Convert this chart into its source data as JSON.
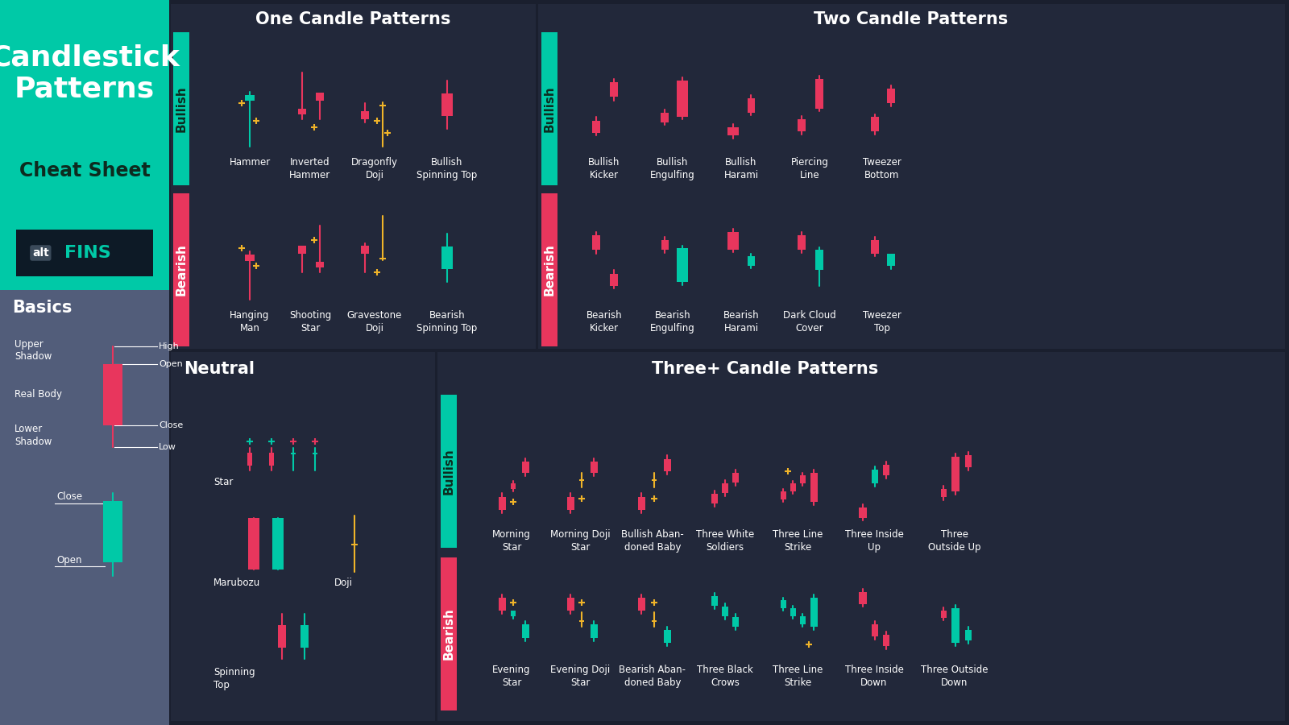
{
  "bg_dark": "#1a1f2e",
  "bg_panel": "#22283a",
  "bg_left_teal": "#00c9a7",
  "bg_left_dark": "#525d7a",
  "bullish_color": "#00c9a7",
  "bearish_color": "#e8365d",
  "doji_color": "#f0b429",
  "text_white": "#ffffff",
  "text_dark": "#0d2b1f",
  "one_candle_title": "One Candle Patterns",
  "two_candle_title": "Two Candle Patterns",
  "neutral_title": "Neutral",
  "three_candle_title": "Three+ Candle Patterns",
  "basics_title": "Basics",
  "one_candle_bullish": [
    "Hammer",
    "Inverted\nHammer",
    "Dragonfly\nDoji",
    "Bullish\nSpinning Top"
  ],
  "one_candle_bearish": [
    "Hanging\nMan",
    "Shooting\nStar",
    "Gravestone\nDoji",
    "Bearish\nSpinning Top"
  ],
  "two_candle_bullish": [
    "Bullish\nKicker",
    "Bullish\nEngulfing",
    "Bullish\nHarami",
    "Piercing\nLine",
    "Tweezer\nBottom"
  ],
  "two_candle_bearish": [
    "Bearish\nKicker",
    "Bearish\nEngulfing",
    "Bearish\nHarami",
    "Dark Cloud\nCover",
    "Tweezer\nTop"
  ],
  "neutral_patterns": [
    "Star",
    "Marubozu",
    "Doji",
    "Spinning\nTop"
  ],
  "three_candle_bullish": [
    "Morning\nStar",
    "Morning Doji\nStar",
    "Bullish Aban-\ndoned Baby",
    "Three White\nSoldiers",
    "Three Line\nStrike",
    "Three Inside\nUp",
    "Three\nOutside Up"
  ],
  "three_candle_bearish": [
    "Evening\nStar",
    "Evening Doji\nStar",
    "Bearish Aban-\ndoned Baby",
    "Three Black\nCrows",
    "Three Line\nStrike",
    "Three Inside\nDown",
    "Three Outside\nDown"
  ]
}
